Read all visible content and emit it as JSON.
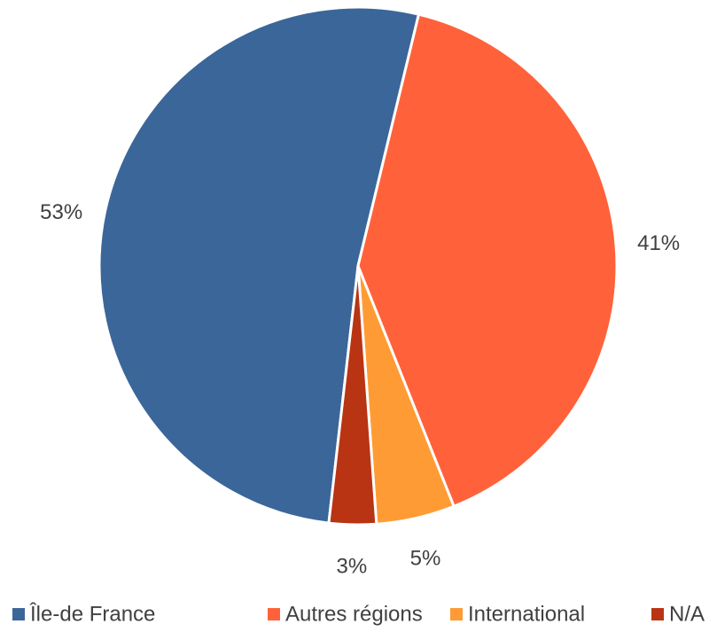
{
  "chart_data": {
    "type": "pie",
    "categories": [
      "Île-de France",
      "Autres régions",
      "International",
      "N/A"
    ],
    "values": [
      53,
      41,
      5,
      3
    ],
    "value_labels": [
      "53%",
      "41%",
      "5%",
      "3%"
    ],
    "colors": [
      "#3b6699",
      "#ff623a",
      "#ff9b34",
      "#b83413"
    ],
    "legend": "bottom"
  }
}
